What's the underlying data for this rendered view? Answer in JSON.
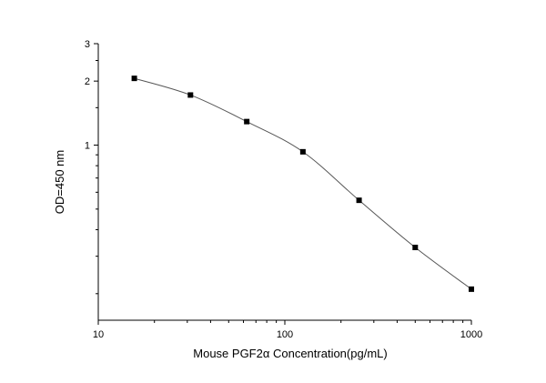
{
  "chart_data": {
    "type": "scatter",
    "title": "",
    "xlabel": "Mouse  PGF2α  Concentration(pg/mL)",
    "ylabel": "OD=450 nm",
    "xscale": "log",
    "yscale": "log",
    "xlim": [
      10,
      1000
    ],
    "ylim": [
      0.15,
      3
    ],
    "x_ticks": [
      10,
      100,
      1000
    ],
    "y_ticks": [
      1,
      2,
      3
    ],
    "x_tick_labels": [
      "10",
      "100",
      "1000"
    ],
    "y_tick_labels": [
      "1",
      "2",
      "3"
    ],
    "grid": false,
    "legend": "none",
    "fit_line": true,
    "series": [
      {
        "x": [
          15.6,
          31.2,
          62.5,
          125,
          250,
          500,
          1000
        ],
        "y": [
          2.06,
          1.72,
          1.29,
          0.93,
          0.55,
          0.33,
          0.21
        ]
      }
    ],
    "colors": {
      "marker": "#000000",
      "line": "#555555",
      "axis": "#000000"
    }
  }
}
